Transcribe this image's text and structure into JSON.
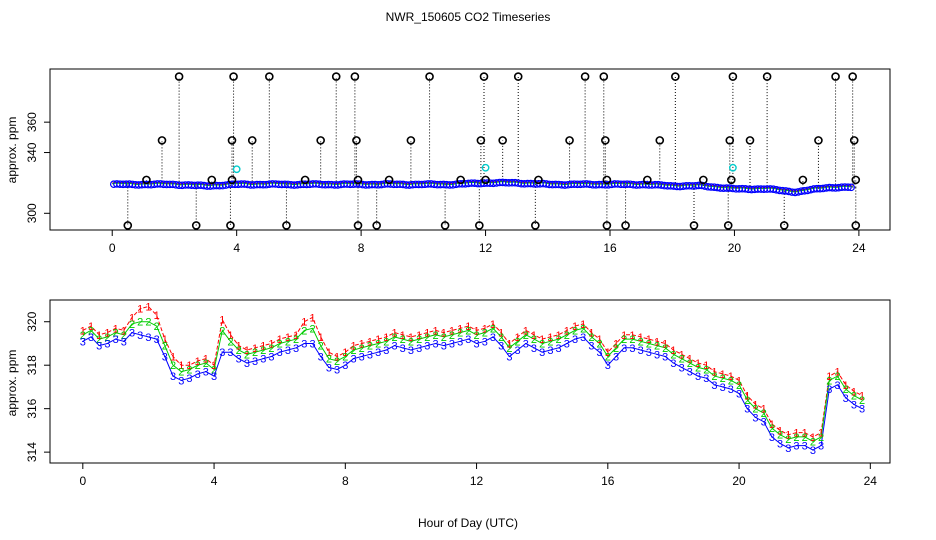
{
  "title": "NWR_150605  CO2 Timeseries",
  "xlabel_common": "Hour of Day (UTC)",
  "colors": {
    "black": "#000000",
    "red": "#ff0000",
    "green": "#00cc00",
    "blue": "#0000ff",
    "cyan": "#00cccc"
  },
  "chart_data": [
    {
      "type": "scatter",
      "name": "top-panel",
      "ylabel": "approx. ppm",
      "xlim": [
        -2,
        25
      ],
      "ylim": [
        289,
        395
      ],
      "xticks": [
        0,
        4,
        8,
        12,
        16,
        20,
        24
      ],
      "yticks": [
        300,
        340,
        360
      ],
      "baseline_hourly": [
        319,
        319,
        319,
        318,
        319,
        319,
        319,
        319,
        319,
        319,
        319,
        319,
        320,
        320,
        319,
        319,
        319,
        319,
        318,
        318,
        316,
        316,
        314,
        317,
        317
      ],
      "flagged_high_390": [
        2.15,
        3.9,
        5.05,
        7.2,
        7.8,
        10.2,
        11.95,
        13.05,
        15.2,
        15.8,
        18.1,
        19.95,
        21.05,
        23.25,
        23.8
      ],
      "flagged_mid_348": [
        1.6,
        3.85,
        4.5,
        6.7,
        7.85,
        9.6,
        11.85,
        12.55,
        14.7,
        15.85,
        17.6,
        19.85,
        20.5,
        22.7,
        23.85
      ],
      "flagged_low_292": [
        0.5,
        2.7,
        3.8,
        5.6,
        7.9,
        8.5,
        10.7,
        11.8,
        13.6,
        15.9,
        16.5,
        18.7,
        19.8,
        21.6,
        23.9
      ],
      "flagged_near_322": [
        1.1,
        3.2,
        3.85,
        6.2,
        7.9,
        8.9,
        11.2,
        12.0,
        13.7,
        15.9,
        17.2,
        19.0,
        19.9,
        22.2,
        23.9
      ],
      "cyan_points": [
        [
          4.0,
          329
        ],
        [
          12.0,
          330
        ],
        [
          19.95,
          330
        ]
      ]
    },
    {
      "type": "line",
      "name": "bottom-panel",
      "ylabel": "approx. ppm",
      "xlim": [
        -1,
        24.6
      ],
      "ylim": [
        313.5,
        321
      ],
      "xticks": [
        0,
        4,
        8,
        12,
        16,
        20,
        24
      ],
      "yticks": [
        314,
        316,
        318,
        320
      ],
      "series_labels": [
        "1",
        "2",
        "3"
      ],
      "x": [
        0.0,
        0.25,
        0.5,
        0.75,
        1.0,
        1.25,
        1.5,
        1.75,
        2.0,
        2.25,
        2.5,
        2.75,
        3.0,
        3.25,
        3.5,
        3.75,
        4.0,
        4.25,
        4.5,
        4.75,
        5.0,
        5.25,
        5.5,
        5.75,
        6.0,
        6.25,
        6.5,
        6.75,
        7.0,
        7.25,
        7.5,
        7.75,
        8.0,
        8.25,
        8.5,
        8.75,
        9.0,
        9.25,
        9.5,
        9.75,
        10.0,
        10.25,
        10.5,
        10.75,
        11.0,
        11.25,
        11.5,
        11.75,
        12.0,
        12.25,
        12.5,
        12.75,
        13.0,
        13.25,
        13.5,
        13.75,
        14.0,
        14.25,
        14.5,
        14.75,
        15.0,
        15.25,
        15.5,
        15.75,
        16.0,
        16.25,
        16.5,
        16.75,
        17.0,
        17.25,
        17.5,
        17.75,
        18.0,
        18.25,
        18.5,
        18.75,
        19.0,
        19.25,
        19.5,
        19.75,
        20.0,
        20.25,
        20.5,
        20.75,
        21.0,
        21.25,
        21.5,
        21.75,
        22.0,
        22.25,
        22.5,
        22.75,
        23.0,
        23.25,
        23.5,
        23.75
      ],
      "series": [
        {
          "name": "1",
          "color": "#ff0000",
          "values": [
            319.6,
            319.8,
            319.4,
            319.5,
            319.7,
            319.6,
            320.2,
            320.6,
            320.7,
            320.3,
            319.2,
            318.4,
            318.0,
            318.0,
            318.2,
            318.3,
            318.0,
            320.1,
            319.4,
            318.9,
            318.7,
            318.8,
            318.9,
            319.0,
            319.2,
            319.3,
            319.4,
            320.0,
            320.2,
            319.3,
            318.6,
            318.4,
            318.6,
            318.9,
            319.0,
            319.1,
            319.2,
            319.3,
            319.5,
            319.4,
            319.3,
            319.4,
            319.5,
            319.6,
            319.5,
            319.6,
            319.7,
            319.8,
            319.6,
            319.7,
            319.9,
            319.5,
            319.0,
            319.3,
            319.6,
            319.4,
            319.2,
            319.3,
            319.4,
            319.6,
            319.8,
            319.9,
            319.5,
            319.2,
            318.6,
            319.0,
            319.4,
            319.4,
            319.3,
            319.2,
            319.1,
            319.0,
            318.7,
            318.5,
            318.3,
            318.1,
            318.0,
            317.7,
            317.6,
            317.5,
            317.3,
            316.6,
            316.2,
            316.0,
            315.3,
            315.0,
            314.8,
            314.9,
            314.9,
            314.7,
            314.9,
            317.5,
            317.7,
            317.1,
            316.8,
            316.6
          ]
        },
        {
          "name": "2",
          "color": "#00cc00",
          "values": [
            319.4,
            319.6,
            319.2,
            319.3,
            319.5,
            319.4,
            319.9,
            320.0,
            320.0,
            319.8,
            318.9,
            318.0,
            317.7,
            317.8,
            318.0,
            318.1,
            317.8,
            319.6,
            319.1,
            318.7,
            318.5,
            318.6,
            318.7,
            318.8,
            319.0,
            319.1,
            319.2,
            319.6,
            319.7,
            318.9,
            318.3,
            318.2,
            318.4,
            318.7,
            318.8,
            318.9,
            319.0,
            319.1,
            319.3,
            319.2,
            319.1,
            319.2,
            319.3,
            319.4,
            319.3,
            319.4,
            319.5,
            319.6,
            319.4,
            319.5,
            319.7,
            319.3,
            318.8,
            319.1,
            319.4,
            319.2,
            319.0,
            319.1,
            319.2,
            319.4,
            319.6,
            319.7,
            319.3,
            319.0,
            318.4,
            318.8,
            319.2,
            319.2,
            319.1,
            319.0,
            318.9,
            318.8,
            318.5,
            318.3,
            318.1,
            317.9,
            317.8,
            317.5,
            317.4,
            317.3,
            317.1,
            316.4,
            316.0,
            315.8,
            315.1,
            314.8,
            314.6,
            314.7,
            314.7,
            314.5,
            314.7,
            317.3,
            317.5,
            316.9,
            316.6,
            316.4
          ]
        },
        {
          "name": "3",
          "color": "#0000ff",
          "values": [
            319.1,
            319.3,
            318.9,
            319.0,
            319.2,
            319.1,
            319.5,
            319.4,
            319.3,
            319.2,
            318.4,
            317.5,
            317.3,
            317.4,
            317.6,
            317.7,
            317.5,
            318.6,
            318.6,
            318.3,
            318.1,
            318.2,
            318.3,
            318.4,
            318.6,
            318.7,
            318.8,
            319.0,
            319.0,
            318.4,
            317.9,
            317.8,
            318.0,
            318.3,
            318.4,
            318.5,
            318.6,
            318.7,
            318.9,
            318.8,
            318.7,
            318.8,
            318.9,
            319.0,
            318.9,
            319.0,
            319.1,
            319.2,
            319.0,
            319.1,
            319.3,
            318.9,
            318.4,
            318.7,
            319.0,
            318.8,
            318.6,
            318.7,
            318.8,
            319.0,
            319.2,
            319.3,
            318.9,
            318.6,
            318.0,
            318.4,
            318.8,
            318.8,
            318.7,
            318.6,
            318.5,
            318.4,
            318.1,
            317.9,
            317.7,
            317.5,
            317.4,
            317.1,
            317.0,
            316.9,
            316.7,
            316.0,
            315.6,
            315.4,
            314.7,
            314.4,
            314.2,
            314.3,
            314.3,
            314.1,
            314.3,
            316.9,
            317.1,
            316.5,
            316.2,
            316.0
          ]
        }
      ]
    }
  ]
}
